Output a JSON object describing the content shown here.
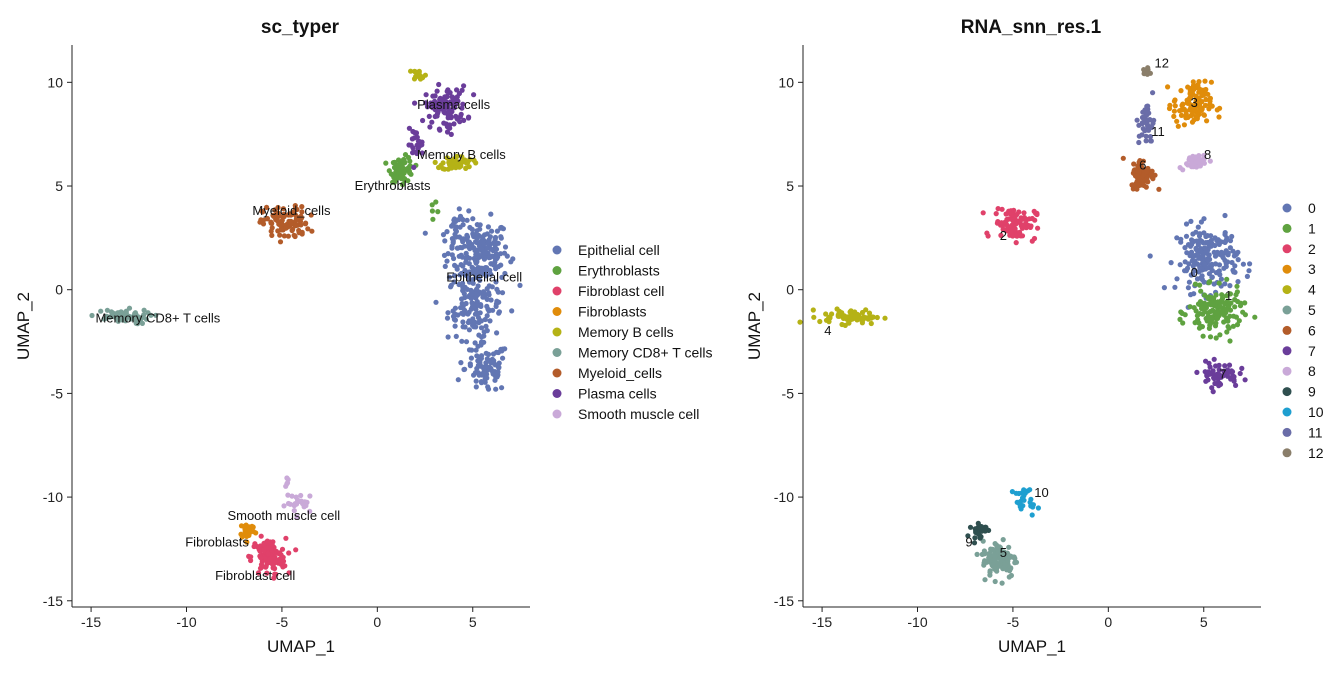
{
  "colors": {
    "Epithelial cell": "#6276b3",
    "Erythroblasts": "#5fa240",
    "Fibroblast cell": "#e0416a",
    "Fibroblasts": "#e08c0a",
    "Memory B cells": "#b5b216",
    "Memory CD8+ T cells": "#7aa097",
    "Myeloid_cells": "#b35c2a",
    "Plasma cells": "#6a3d9a",
    "Smooth muscle cell": "#c9a9d8",
    "0": "#6276b3",
    "1": "#5fa240",
    "2": "#e0416a",
    "3": "#e08c0a",
    "4": "#b5b216",
    "5": "#7aa097",
    "6": "#b35c2a",
    "7": "#6a3d9a",
    "8": "#c9a9d8",
    "9": "#2f4f4f",
    "10": "#1e9fd0",
    "11": "#6a6da8",
    "12": "#8a7e6a"
  },
  "chart_data": [
    {
      "type": "scatter",
      "title": "sc_typer",
      "xlabel": "UMAP_1",
      "ylabel": "UMAP_2",
      "xlim": [
        -16,
        8
      ],
      "ylim": [
        -15.3,
        11.8
      ],
      "xticks": [
        -15,
        -10,
        -5,
        0,
        5
      ],
      "yticks": [
        -15,
        -10,
        -5,
        0,
        5,
        10
      ],
      "grid": false,
      "legend": "right",
      "legend_entries": [
        "Epithelial cell",
        "Erythroblasts",
        "Fibroblast cell",
        "Fibroblasts",
        "Memory B cells",
        "Memory CD8+ T cells",
        "Myeloid_cells",
        "Plasma cells",
        "Smooth muscle cell"
      ],
      "clusters": [
        {
          "name": "Epithelial cell",
          "regions": [
            [
              5.3,
              1.8,
              1.6,
              1.6,
              200
            ],
            [
              5.1,
              -0.8,
              1.4,
              1.6,
              140
            ],
            [
              5.7,
              -3.8,
              1.1,
              1.2,
              90
            ],
            [
              4.2,
              2.8,
              0.6,
              0.9,
              20
            ]
          ]
        },
        {
          "name": "Erythroblasts",
          "regions": [
            [
              1.3,
              5.8,
              0.6,
              0.6,
              70
            ],
            [
              3.0,
              4.0,
              0.3,
              0.3,
              5
            ]
          ]
        },
        {
          "name": "Fibroblast cell",
          "regions": [
            [
              -5.7,
              -12.9,
              0.9,
              0.9,
              110
            ]
          ]
        },
        {
          "name": "Fibroblasts",
          "regions": [
            [
              -6.8,
              -11.6,
              0.4,
              0.4,
              30
            ]
          ]
        },
        {
          "name": "Memory B cells",
          "regions": [
            [
              4.2,
              6.1,
              0.8,
              0.35,
              50
            ],
            [
              2.2,
              10.4,
              0.35,
              0.25,
              15
            ]
          ]
        },
        {
          "name": "Memory CD8+ T cells",
          "regions": [
            [
              -13.5,
              -1.3,
              1.6,
              0.35,
              60
            ]
          ]
        },
        {
          "name": "Myeloid_cells",
          "regions": [
            [
              -4.8,
              3.2,
              1.2,
              0.8,
              100
            ]
          ]
        },
        {
          "name": "Plasma cells",
          "regions": [
            [
              3.6,
              8.8,
              1.1,
              1.0,
              110
            ],
            [
              2.0,
              7.0,
              0.4,
              0.7,
              25
            ]
          ]
        },
        {
          "name": "Smooth muscle cell",
          "regions": [
            [
              -4.0,
              -10.3,
              0.8,
              0.5,
              25
            ],
            [
              -4.7,
              -9.2,
              0.15,
              0.2,
              5
            ]
          ]
        }
      ],
      "labels": [
        {
          "text": "Plasma cells",
          "x": 4.0,
          "y": 8.9
        },
        {
          "text": "Memory B cells",
          "x": 4.4,
          "y": 6.5
        },
        {
          "text": "Erythroblasts",
          "x": 0.8,
          "y": 5.0
        },
        {
          "text": "Myeloid_cells",
          "x": -4.5,
          "y": 3.8
        },
        {
          "text": "Epithelial cell",
          "x": 5.6,
          "y": 0.6
        },
        {
          "text": "Memory CD8+ T cells",
          "x": -11.5,
          "y": -1.4
        },
        {
          "text": "Smooth muscle cell",
          "x": -4.9,
          "y": -10.9
        },
        {
          "text": "Fibroblasts",
          "x": -8.4,
          "y": -12.2
        },
        {
          "text": "Fibroblast cell",
          "x": -6.4,
          "y": -13.8
        }
      ]
    },
    {
      "type": "scatter",
      "title": "RNA_snn_res.1",
      "xlabel": "UMAP_1",
      "ylabel": "UMAP_2",
      "xlim": [
        -16,
        8
      ],
      "ylim": [
        -15.3,
        11.8
      ],
      "xticks": [
        -15,
        -10,
        -5,
        0,
        5
      ],
      "yticks": [
        -15,
        -10,
        -5,
        0,
        5,
        10
      ],
      "grid": false,
      "legend": "right",
      "legend_entries": [
        "0",
        "1",
        "2",
        "3",
        "4",
        "5",
        "6",
        "7",
        "8",
        "9",
        "10",
        "11",
        "12"
      ],
      "clusters": [
        {
          "name": "0",
          "regions": [
            [
              5.2,
              1.5,
              1.6,
              1.6,
              200
            ]
          ]
        },
        {
          "name": "1",
          "regions": [
            [
              5.6,
              -1.1,
              1.4,
              1.1,
              140
            ]
          ]
        },
        {
          "name": "2",
          "regions": [
            [
              -4.9,
              3.2,
              1.1,
              0.8,
              100
            ]
          ]
        },
        {
          "name": "3",
          "regions": [
            [
              4.4,
              8.9,
              1.0,
              1.1,
              110
            ]
          ]
        },
        {
          "name": "4",
          "regions": [
            [
              -13.5,
              -1.3,
              1.6,
              0.35,
              60
            ]
          ]
        },
        {
          "name": "5",
          "regions": [
            [
              -5.7,
              -13.0,
              0.9,
              0.9,
              110
            ]
          ]
        },
        {
          "name": "6",
          "regions": [
            [
              1.8,
              5.6,
              0.6,
              0.7,
              80
            ]
          ]
        },
        {
          "name": "7",
          "regions": [
            [
              5.8,
              -4.1,
              1.0,
              0.6,
              60
            ]
          ]
        },
        {
          "name": "8",
          "regions": [
            [
              4.5,
              6.2,
              0.8,
              0.35,
              40
            ]
          ]
        },
        {
          "name": "9",
          "regions": [
            [
              -6.8,
              -11.6,
              0.4,
              0.4,
              30
            ]
          ]
        },
        {
          "name": "10",
          "regions": [
            [
              -4.3,
              -10.2,
              0.6,
              0.6,
              25
            ]
          ]
        },
        {
          "name": "11",
          "regions": [
            [
              2.0,
              8.0,
              0.4,
              1.1,
              40
            ]
          ]
        },
        {
          "name": "12",
          "regions": [
            [
              2.0,
              10.5,
              0.25,
              0.2,
              12
            ]
          ]
        }
      ],
      "labels": [
        {
          "text": "12",
          "x": 2.8,
          "y": 10.9
        },
        {
          "text": "3",
          "x": 4.5,
          "y": 9.0
        },
        {
          "text": "11",
          "x": 2.6,
          "y": 7.6
        },
        {
          "text": "8",
          "x": 5.2,
          "y": 6.5
        },
        {
          "text": "6",
          "x": 1.8,
          "y": 6.0
        },
        {
          "text": "2",
          "x": -5.5,
          "y": 2.6
        },
        {
          "text": "0",
          "x": 4.5,
          "y": 0.8
        },
        {
          "text": "1",
          "x": 6.3,
          "y": -0.3
        },
        {
          "text": "4",
          "x": -14.7,
          "y": -2.0
        },
        {
          "text": "7",
          "x": 6.0,
          "y": -4.1
        },
        {
          "text": "10",
          "x": -3.5,
          "y": -9.8
        },
        {
          "text": "9",
          "x": -7.3,
          "y": -12.2
        },
        {
          "text": "5",
          "x": -5.5,
          "y": -12.7
        }
      ]
    }
  ]
}
